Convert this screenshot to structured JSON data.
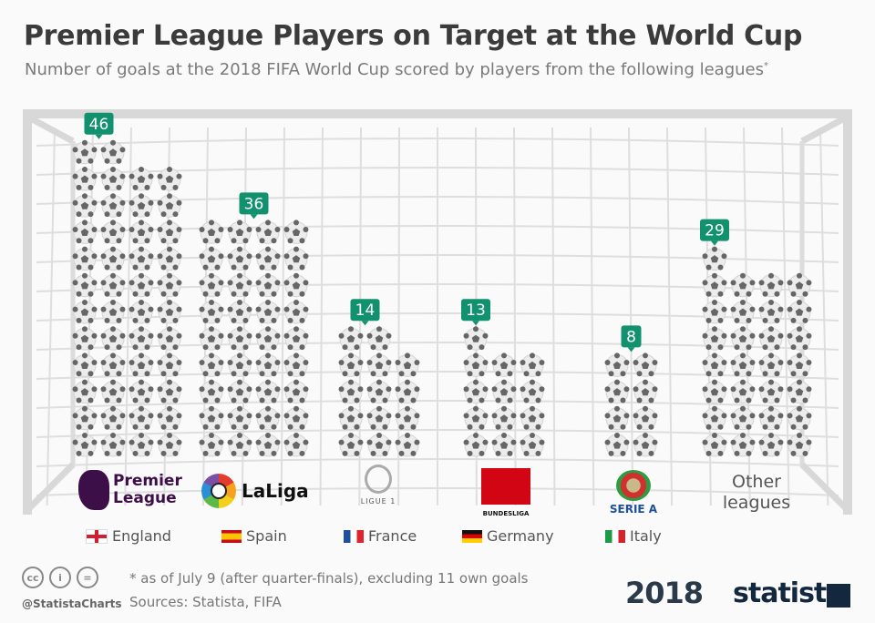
{
  "title": "Premier League Players on Target at the World Cup",
  "subtitle": "Number of goals at the 2018 FIFA World Cup scored by players from the following leagues",
  "subtitle_marker": "*",
  "chart_data": {
    "type": "pictogram-bar",
    "unit_icon": "soccer-ball",
    "categories": [
      "Premier League",
      "LaLiga",
      "Ligue 1",
      "Bundesliga",
      "Serie A",
      "Other leagues"
    ],
    "countries": [
      "England",
      "Spain",
      "France",
      "Germany",
      "Italy",
      ""
    ],
    "values": [
      46,
      36,
      14,
      13,
      8,
      29
    ],
    "label_color": "#12916f"
  },
  "logos": {
    "premier_league": "Premier League",
    "laliga": "LaLiga",
    "ligue1": "LIGUE 1",
    "bundesliga": "BUNDESLIGA",
    "seriea": "SERIE A",
    "other_line1": "Other",
    "other_line2": "leagues"
  },
  "footer": {
    "note": "* as of July 9 (after quarter-finals), excluding 11 own goals",
    "sources": "Sources: Statista, FIFA",
    "handle": "@StatistaCharts",
    "cc_icons": [
      "cc",
      "by",
      "nd"
    ],
    "event_logo": "2018",
    "brand": "statista"
  }
}
